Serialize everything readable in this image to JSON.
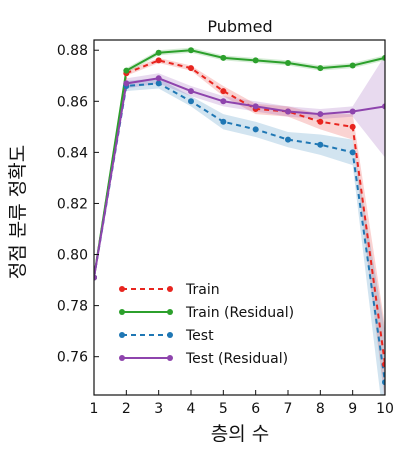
{
  "chart_data": {
    "type": "line",
    "title": "Pubmed",
    "xlabel": "층의 수",
    "ylabel": "정점 분류 정확도",
    "x": [
      1,
      2,
      3,
      4,
      5,
      6,
      7,
      8,
      9,
      10
    ],
    "xlim": [
      1,
      10
    ],
    "ylim": [
      0.745,
      0.884
    ],
    "xticks": [
      "1",
      "2",
      "3",
      "4",
      "5",
      "6",
      "7",
      "8",
      "9",
      "10"
    ],
    "yticks": [
      "0.76",
      "0.78",
      "0.80",
      "0.82",
      "0.84",
      "0.86",
      "0.88"
    ],
    "ytick_values": [
      0.76,
      0.78,
      0.8,
      0.82,
      0.84,
      0.86,
      0.88
    ],
    "legend_position": "lower-left",
    "grid": false,
    "series": [
      {
        "name": "Train",
        "color": "#e8251f",
        "dash": "dashed",
        "values": [
          0.791,
          0.871,
          0.876,
          0.873,
          0.864,
          0.857,
          0.856,
          0.852,
          0.85,
          0.757
        ],
        "band": [
          0.0,
          0.001,
          0.001,
          0.001,
          0.002,
          0.002,
          0.002,
          0.003,
          0.005,
          0.015
        ]
      },
      {
        "name": "Train (Residual)",
        "color": "#2ca02c",
        "dash": "solid",
        "values": [
          0.791,
          0.872,
          0.879,
          0.88,
          0.877,
          0.876,
          0.875,
          0.873,
          0.874,
          0.877
        ],
        "band": [
          0.0,
          0.001,
          0.001,
          0.001,
          0.001,
          0.001,
          0.001,
          0.001,
          0.001,
          0.001
        ]
      },
      {
        "name": "Test",
        "color": "#1f77b4",
        "dash": "dashed",
        "values": [
          0.791,
          0.866,
          0.867,
          0.86,
          0.852,
          0.849,
          0.845,
          0.843,
          0.84,
          0.75
        ],
        "band": [
          0.0,
          0.002,
          0.002,
          0.002,
          0.003,
          0.003,
          0.003,
          0.004,
          0.005,
          0.02
        ]
      },
      {
        "name": "Test (Residual)",
        "color": "#8e44ad",
        "dash": "solid",
        "values": [
          0.791,
          0.867,
          0.869,
          0.864,
          0.86,
          0.858,
          0.856,
          0.855,
          0.856,
          0.858
        ],
        "band": [
          0.0,
          0.002,
          0.002,
          0.002,
          0.002,
          0.002,
          0.002,
          0.002,
          0.002,
          0.02
        ]
      }
    ]
  }
}
